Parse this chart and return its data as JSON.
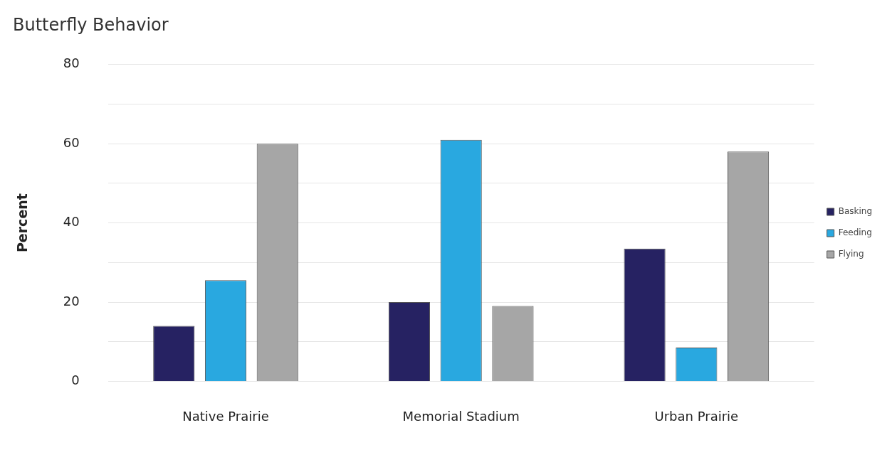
{
  "chart_data": {
    "type": "bar",
    "title": "Butterfly Behavior",
    "ylabel": "Percent",
    "categories": [
      "Native Prairie",
      "Memorial Stadium",
      "Urban Prairie"
    ],
    "series": [
      {
        "name": "Basking",
        "color": "#262262",
        "values": [
          14,
          20,
          33.5
        ]
      },
      {
        "name": "Feeding",
        "color": "#29a8e0",
        "values": [
          25.5,
          61,
          8.5
        ]
      },
      {
        "name": "Flying",
        "color": "#a6a6a6",
        "values": [
          60,
          19,
          58
        ]
      }
    ],
    "ylim": [
      0,
      80
    ],
    "yticks": [
      0,
      {
        "value": 10,
        "label": null
      },
      20,
      {
        "value": 30,
        "label": null
      },
      40,
      {
        "value": 50,
        "label": null
      },
      60,
      {
        "value": 70,
        "label": null
      },
      80
    ],
    "grid": "y",
    "legend": "right"
  }
}
